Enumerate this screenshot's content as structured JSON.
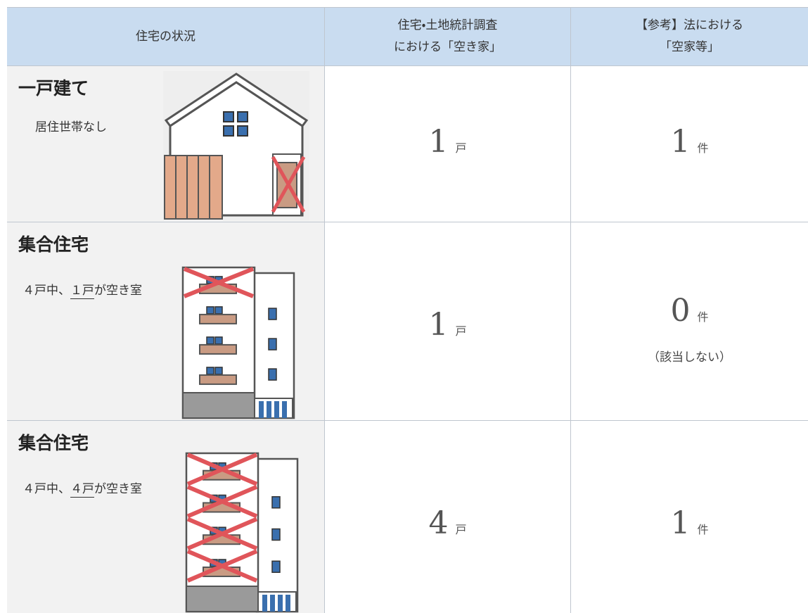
{
  "table": {
    "header": [
      [
        "住宅の状況"
      ],
      [
        "住宅・土地統計調査",
        "における「空き家」"
      ],
      [
        "【参考】法における",
        "「空家等」"
      ]
    ],
    "rows": [
      {
        "title": "一戸建て",
        "description": {
          "text": "居住世帯なし"
        },
        "survey": {
          "value": "1",
          "unit": "戸"
        },
        "law": {
          "value": "1",
          "unit": "件"
        }
      },
      {
        "title": "集合住宅",
        "description": {
          "before": "４戸中、",
          "underlined": "１戸",
          "after": "が空き室"
        },
        "survey": {
          "value": "1",
          "unit": "戸"
        },
        "law": {
          "value": "0",
          "unit": "件",
          "note": "（該当しない）"
        }
      },
      {
        "title": "集合住宅",
        "description": {
          "before": "４戸中、",
          "underlined": "４戸",
          "after": "が空き室"
        },
        "survey": {
          "value": "4",
          "unit": "戸"
        },
        "law": {
          "value": "1",
          "unit": "件"
        }
      }
    ]
  }
}
